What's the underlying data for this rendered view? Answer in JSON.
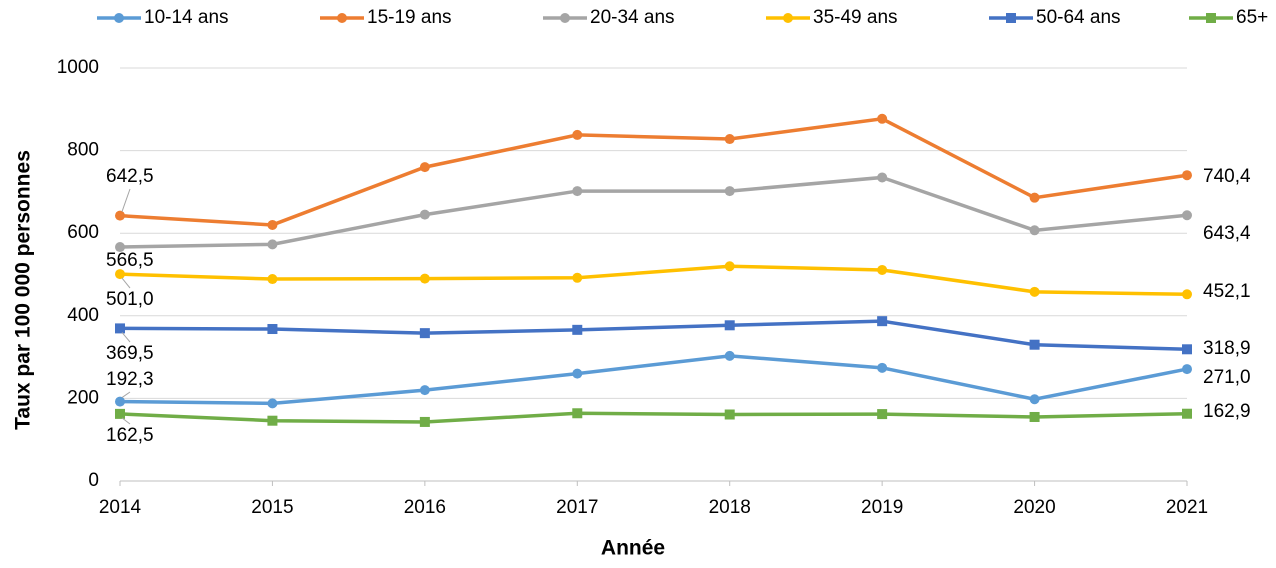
{
  "chart_data": {
    "type": "line",
    "y_label": "Taux par 100 000 personnes",
    "x_label": "Année",
    "x": [
      2014,
      2015,
      2016,
      2017,
      2018,
      2019,
      2020,
      2021
    ],
    "xlim": [
      2014,
      2021
    ],
    "xticks": [
      2014,
      2015,
      2016,
      2017,
      2018,
      2019,
      2020,
      2021
    ],
    "ylim": [
      0,
      1000
    ],
    "yticks": [
      0,
      200,
      400,
      600,
      800,
      1000
    ],
    "grid": true,
    "legend": "top",
    "series": [
      {
        "name": "10-14 ans",
        "color": "#5b9bd5",
        "marker": "circle",
        "values": [
          192.3,
          188,
          220,
          260,
          303,
          274,
          198,
          271.0
        ],
        "value_labels": [
          "192,3",
          null,
          null,
          null,
          null,
          null,
          null,
          "271,0"
        ]
      },
      {
        "name": "15-19 ans",
        "color": "#ed7d31",
        "marker": "circle",
        "values": [
          642.5,
          620,
          760,
          838,
          828,
          877,
          686,
          740.4
        ],
        "value_labels": [
          "642,5",
          null,
          null,
          null,
          null,
          null,
          null,
          "740,4"
        ]
      },
      {
        "name": "20-34 ans",
        "color": "#a5a5a5",
        "marker": "circle",
        "values": [
          566.5,
          573,
          645,
          702,
          702,
          735,
          607,
          643.4
        ],
        "value_labels": [
          "566,5",
          null,
          null,
          null,
          null,
          null,
          null,
          "643,4"
        ]
      },
      {
        "name": "35-49 ans",
        "color": "#ffc000",
        "marker": "circle",
        "values": [
          501.0,
          489,
          490,
          492,
          520,
          511,
          458,
          452.1
        ],
        "value_labels": [
          "501,0",
          null,
          null,
          null,
          null,
          null,
          null,
          "452,1"
        ]
      },
      {
        "name": "50-64 ans",
        "color": "#4472c4",
        "marker": "square",
        "values": [
          369.5,
          368,
          358,
          366,
          377,
          387,
          330,
          318.9
        ],
        "value_labels": [
          "369,5",
          null,
          null,
          null,
          null,
          null,
          null,
          "318,9"
        ]
      },
      {
        "name": "65+",
        "color": "#70ad47",
        "marker": "square",
        "values": [
          162.5,
          146,
          143,
          164,
          161,
          162,
          155,
          162.9
        ],
        "value_labels": [
          "162,5",
          null,
          null,
          null,
          null,
          null,
          null,
          "162,9"
        ]
      }
    ]
  }
}
